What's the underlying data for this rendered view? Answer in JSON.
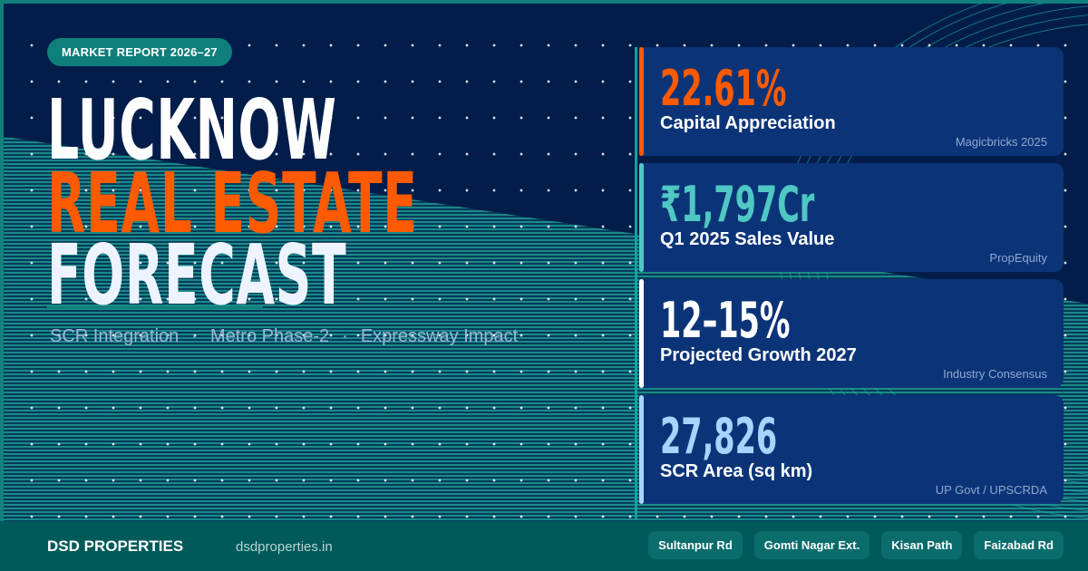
{
  "colors": {
    "navy": "#021d4a",
    "teal": "#12807c",
    "orange": "#ff5a00",
    "card": "#0b3478",
    "footer": "#005a5a"
  },
  "badge": "MARKET REPORT 2026–27",
  "title": {
    "line1": "LUCKNOW",
    "line2": "REAL ESTATE",
    "line3": "FORECAST"
  },
  "subtitle": {
    "items": [
      "SCR Integration",
      "Metro Phase-2",
      "Expressway Impact"
    ],
    "separator": "·"
  },
  "stats": [
    {
      "value": "22.61%",
      "label": "Capital Appreciation",
      "source": "Magicbricks 2025",
      "accent": "#ff5a00"
    },
    {
      "value": "₹1,797Cr",
      "label": "Q1 2025 Sales Value",
      "source": "PropEquity",
      "accent": "#4fc7c3"
    },
    {
      "value": "12–15%",
      "label": "Projected Growth 2027",
      "source": "Industry Consensus",
      "accent": "#ffffff"
    },
    {
      "value": "27,826",
      "label": "SCR Area (sq km)",
      "source": "UP Govt / UPSCRDA",
      "accent": "#a7d3ff"
    }
  ],
  "footer": {
    "brand": "DSD PROPERTIES",
    "url": "dsdproperties.in",
    "locations": [
      "Sultanpur Rd",
      "Gomti Nagar Ext.",
      "Kisan Path",
      "Faizabad Rd"
    ]
  }
}
